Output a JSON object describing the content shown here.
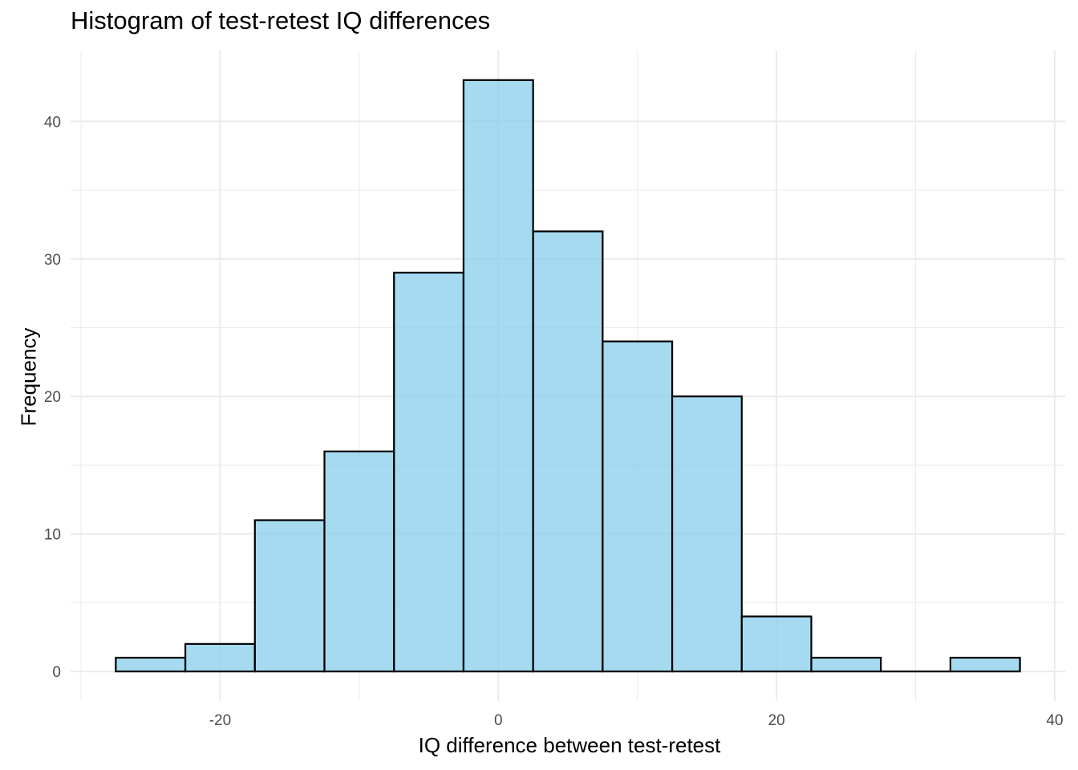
{
  "chart_data": {
    "type": "bar",
    "title": "Histogram of test-retest IQ differences",
    "xlabel": "IQ difference between test-retest",
    "ylabel": "Frequency",
    "bin_width": 5,
    "bins": [
      {
        "x0": -27.5,
        "x1": -22.5,
        "count": 1
      },
      {
        "x0": -22.5,
        "x1": -17.5,
        "count": 2
      },
      {
        "x0": -17.5,
        "x1": -12.5,
        "count": 11
      },
      {
        "x0": -12.5,
        "x1": -7.5,
        "count": 16
      },
      {
        "x0": -7.5,
        "x1": -2.5,
        "count": 29
      },
      {
        "x0": -2.5,
        "x1": 2.5,
        "count": 43
      },
      {
        "x0": 2.5,
        "x1": 7.5,
        "count": 32
      },
      {
        "x0": 7.5,
        "x1": 12.5,
        "count": 24
      },
      {
        "x0": 12.5,
        "x1": 17.5,
        "count": 20
      },
      {
        "x0": 17.5,
        "x1": 22.5,
        "count": 4
      },
      {
        "x0": 22.5,
        "x1": 27.5,
        "count": 1
      },
      {
        "x0": 27.5,
        "x1": 32.5,
        "count": 0
      },
      {
        "x0": 32.5,
        "x1": 37.5,
        "count": 1
      }
    ],
    "xlim": [
      -30.75,
      40.75
    ],
    "ylim": [
      -2.15,
      45.15
    ],
    "x_ticks": [
      -20,
      0,
      20,
      40
    ],
    "x_tick_labels": [
      "-20",
      "0",
      "20",
      "40"
    ],
    "y_ticks": [
      0,
      10,
      20,
      30,
      40
    ],
    "y_tick_labels": [
      "0",
      "10",
      "20",
      "30",
      "40"
    ],
    "grid": true,
    "fill_color": "#87CEEB",
    "fill_opacity": 0.75,
    "stroke_color": "#000000",
    "grid_color": "#ebebeb"
  }
}
